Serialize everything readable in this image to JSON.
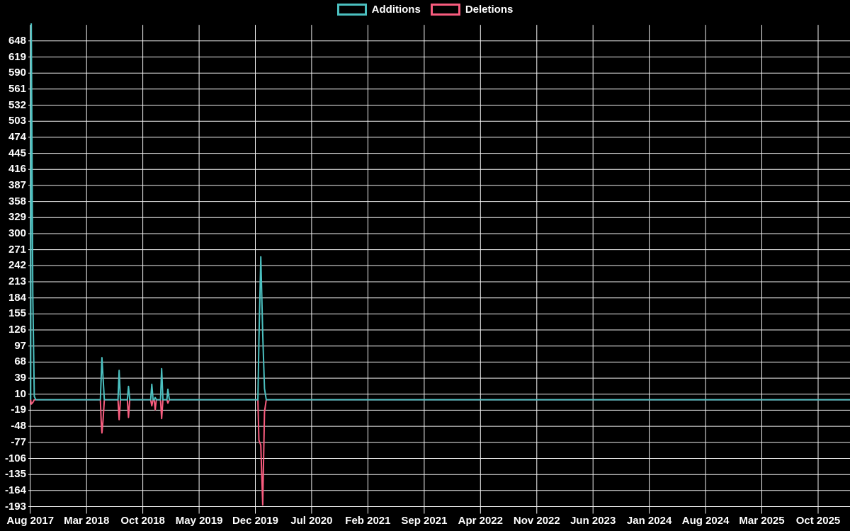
{
  "legend": {
    "additions_label": "Additions",
    "deletions_label": "Deletions"
  },
  "colors": {
    "additions": "#4bc0c0",
    "deletions": "#f85c7e",
    "grid": "#f2f2f2",
    "text": "#ffffff",
    "background": "#000000"
  },
  "chart_data": {
    "type": "line",
    "title": "",
    "xlabel": "",
    "ylabel": "",
    "grid": true,
    "legend_position": "top-center",
    "x_axis": {
      "tick_labels": [
        "Aug 2017",
        "Mar 2018",
        "Oct 2018",
        "May 2019",
        "Dec 2019",
        "Jul 2020",
        "Feb 2021",
        "Sep 2021",
        "Apr 2022",
        "Nov 2022",
        "Jun 2023",
        "Jan 2024",
        "Aug 2024",
        "Mar 2025",
        "Oct 2025"
      ],
      "months_per_tick": 7,
      "end_month": 102
    },
    "y_axis": {
      "tick_values": [
        648,
        619,
        590,
        561,
        532,
        503,
        474,
        445,
        416,
        387,
        358,
        329,
        300,
        271,
        242,
        213,
        184,
        155,
        126,
        97,
        68,
        39,
        10,
        -19,
        -48,
        -77,
        -106,
        -135,
        -164,
        -193
      ],
      "ymax": 677,
      "ymin": -193
    },
    "series": [
      {
        "name": "Additions",
        "color_key": "additions",
        "points": [
          [
            0.05,
            0
          ],
          [
            0.12,
            690
          ],
          [
            0.32,
            190
          ],
          [
            0.5,
            6
          ],
          [
            0.7,
            0
          ],
          [
            8.72,
            0
          ],
          [
            8.82,
            38
          ],
          [
            8.92,
            76
          ],
          [
            9.06,
            40
          ],
          [
            9.22,
            0
          ],
          [
            10.92,
            0
          ],
          [
            11.06,
            53
          ],
          [
            11.22,
            0
          ],
          [
            12.08,
            0
          ],
          [
            12.22,
            24
          ],
          [
            12.38,
            0
          ],
          [
            14.98,
            0
          ],
          [
            15.12,
            28
          ],
          [
            15.28,
            0
          ],
          [
            15.42,
            0
          ],
          [
            15.54,
            4
          ],
          [
            15.68,
            0
          ],
          [
            16.2,
            0
          ],
          [
            16.34,
            56
          ],
          [
            16.5,
            0
          ],
          [
            17.0,
            0
          ],
          [
            17.12,
            19
          ],
          [
            17.3,
            0
          ],
          [
            28.32,
            0
          ],
          [
            28.44,
            104
          ],
          [
            28.68,
            258
          ],
          [
            28.92,
            119
          ],
          [
            29.14,
            20
          ],
          [
            29.36,
            0
          ],
          [
            102,
            0
          ]
        ]
      },
      {
        "name": "Deletions",
        "color_key": "deletions",
        "points": [
          [
            0.05,
            0
          ],
          [
            0.12,
            -8
          ],
          [
            0.32,
            -5
          ],
          [
            0.5,
            0
          ],
          [
            8.72,
            0
          ],
          [
            8.82,
            -37
          ],
          [
            8.92,
            -60
          ],
          [
            9.06,
            -37
          ],
          [
            9.22,
            0
          ],
          [
            10.92,
            0
          ],
          [
            11.06,
            -36
          ],
          [
            11.22,
            0
          ],
          [
            12.08,
            0
          ],
          [
            12.22,
            -32
          ],
          [
            12.38,
            0
          ],
          [
            14.98,
            0
          ],
          [
            15.12,
            -11
          ],
          [
            15.28,
            0
          ],
          [
            15.42,
            0
          ],
          [
            15.54,
            -18
          ],
          [
            15.68,
            0
          ],
          [
            16.2,
            0
          ],
          [
            16.34,
            -34
          ],
          [
            16.5,
            0
          ],
          [
            17.0,
            0
          ],
          [
            17.12,
            -6
          ],
          [
            17.3,
            0
          ],
          [
            28.32,
            0
          ],
          [
            28.44,
            -73
          ],
          [
            28.68,
            -82
          ],
          [
            28.92,
            -190
          ],
          [
            29.14,
            -22
          ],
          [
            29.36,
            0
          ],
          [
            102,
            0
          ]
        ]
      }
    ]
  }
}
